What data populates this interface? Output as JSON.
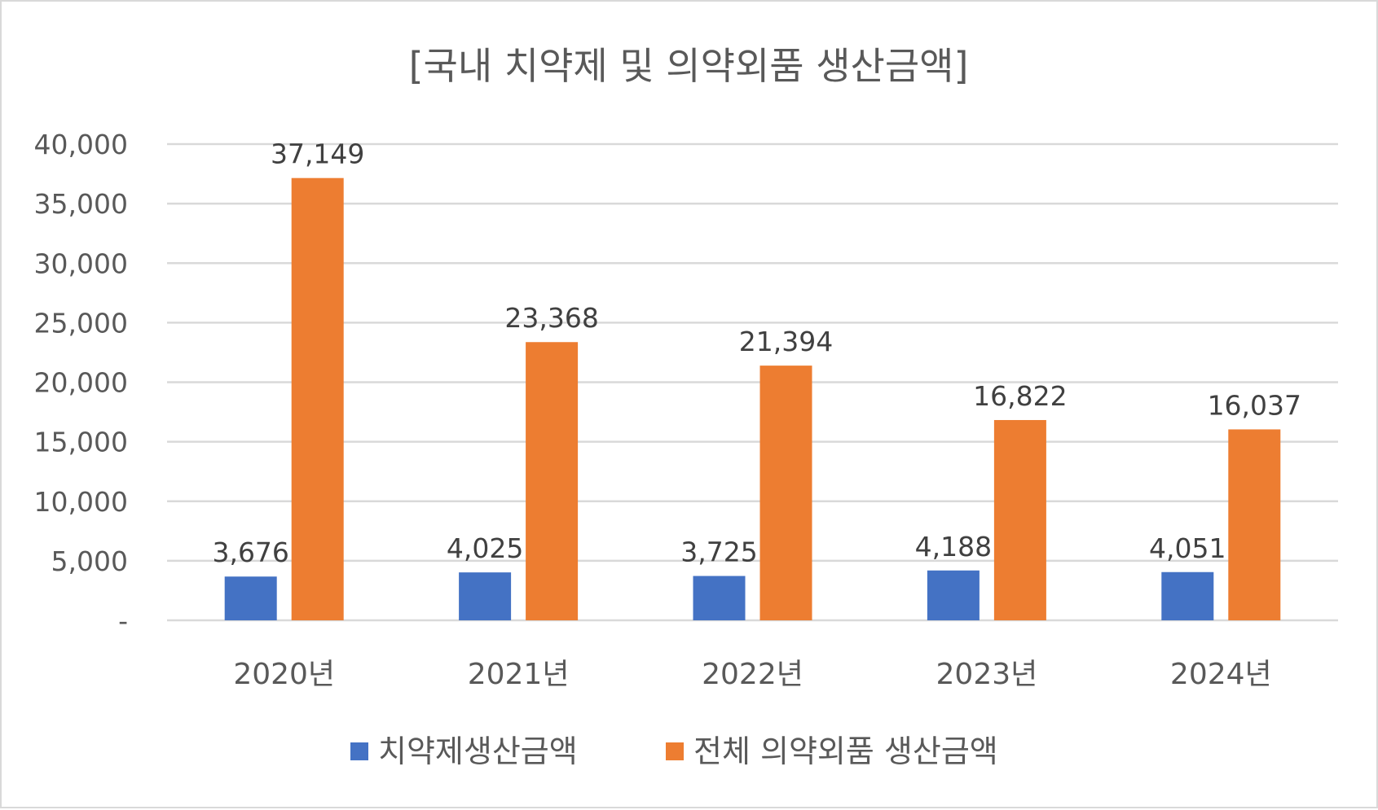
{
  "chart_data": {
    "type": "bar",
    "title": "[국내 치약제 및 의약외품 생산금액]",
    "categories": [
      "2020년",
      "2021년",
      "2022년",
      "2023년",
      "2024년"
    ],
    "series": [
      {
        "name": "치약제생산금액",
        "color": "#4472c4",
        "values": [
          3676,
          4025,
          3725,
          4188,
          4051
        ],
        "labels": [
          "3,676",
          "4,025",
          "3,725",
          "4,188",
          "4,051"
        ]
      },
      {
        "name": "전체 의약외품 생산금액",
        "color": "#ed7d31",
        "values": [
          37149,
          23368,
          21394,
          16822,
          16037
        ],
        "labels": [
          "37,149",
          "23,368",
          "21,394",
          "16,822",
          "16,037"
        ]
      }
    ],
    "ylim": [
      0,
      40000
    ],
    "yticks": [
      0,
      5000,
      10000,
      15000,
      20000,
      25000,
      30000,
      35000,
      40000
    ],
    "ytick_labels": [
      "-",
      "5,000",
      "10,000",
      "15,000",
      "20,000",
      "25,000",
      "30,000",
      "35,000",
      "40,000"
    ],
    "xlabel": "",
    "ylabel": "",
    "grid": true,
    "legend_position": "bottom"
  }
}
